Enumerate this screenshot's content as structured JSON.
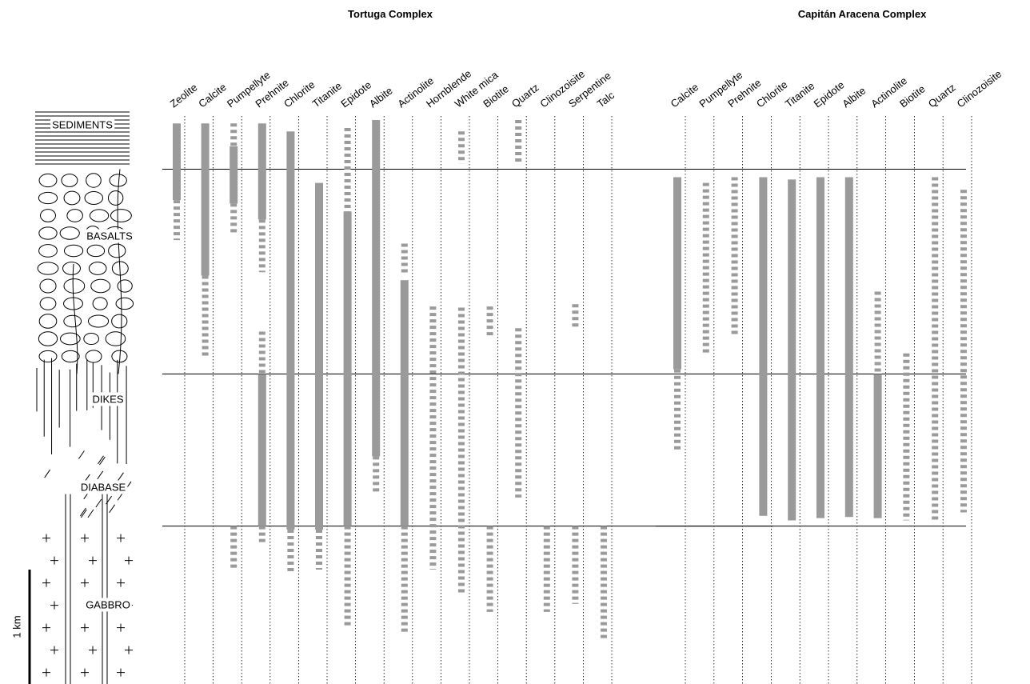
{
  "scale": {
    "ylim": [
      0,
      4.93
    ],
    "label": "1 km",
    "bar": 1
  },
  "lithology": {
    "labels": [
      "SEDIMENTS",
      "BASALTS",
      "DIKES",
      "DIABASE",
      "GABBRO"
    ],
    "boundaries": [
      0.43,
      2.22,
      3.55
    ]
  },
  "complexes": [
    {
      "title": "Tortuga Complex",
      "minerals": [
        {
          "name": "Zeolite",
          "ranges": [
            {
              "from": 0.03,
              "to": 0.7,
              "style": "solid"
            },
            {
              "from": 0.7,
              "to": 1.05,
              "style": "dashed"
            }
          ]
        },
        {
          "name": "Calcite",
          "ranges": [
            {
              "from": 0.03,
              "to": 1.36,
              "style": "solid"
            },
            {
              "from": 1.36,
              "to": 2.08,
              "style": "dashed"
            }
          ]
        },
        {
          "name": "Pumpellyte",
          "ranges": [
            {
              "from": 0.03,
              "to": 0.23,
              "style": "dashed"
            },
            {
              "from": 0.23,
              "to": 0.73,
              "style": "solid"
            },
            {
              "from": 0.73,
              "to": 0.99,
              "style": "dashed"
            },
            {
              "from": 3.55,
              "to": 3.93,
              "style": "dashed"
            }
          ]
        },
        {
          "name": "Prehnite",
          "ranges": [
            {
              "from": 0.03,
              "to": 0.87,
              "style": "solid"
            },
            {
              "from": 0.87,
              "to": 1.33,
              "style": "dashed"
            },
            {
              "from": 1.85,
              "to": 2.22,
              "style": "dashed"
            },
            {
              "from": 2.22,
              "to": 3.55,
              "style": "solid"
            },
            {
              "from": 3.55,
              "to": 3.71,
              "style": "dashed"
            }
          ]
        },
        {
          "name": "Chlorite",
          "ranges": [
            {
              "from": 0.1,
              "to": 3.58,
              "style": "solid"
            },
            {
              "from": 3.58,
              "to": 3.97,
              "style": "dashed"
            }
          ]
        },
        {
          "name": "Titanite",
          "ranges": [
            {
              "from": 0.55,
              "to": 3.58,
              "style": "solid"
            },
            {
              "from": 3.58,
              "to": 3.93,
              "style": "dashed"
            }
          ]
        },
        {
          "name": "Epidote",
          "ranges": [
            {
              "from": 0.07,
              "to": 0.8,
              "style": "dashed"
            },
            {
              "from": 0.8,
              "to": 3.55,
              "style": "solid"
            },
            {
              "from": 3.55,
              "to": 4.44,
              "style": "dashed"
            }
          ]
        },
        {
          "name": "Albite",
          "ranges": [
            {
              "from": 0.0,
              "to": 2.94,
              "style": "solid"
            },
            {
              "from": 2.94,
              "to": 3.25,
              "style": "dashed"
            }
          ]
        },
        {
          "name": "Actinolite",
          "ranges": [
            {
              "from": 1.08,
              "to": 1.36,
              "style": "dashed"
            },
            {
              "from": 1.4,
              "to": 3.55,
              "style": "solid"
            },
            {
              "from": 3.55,
              "to": 4.48,
              "style": "dashed"
            }
          ]
        },
        {
          "name": "Hornblende",
          "ranges": [
            {
              "from": 1.63,
              "to": 3.93,
              "style": "dashed"
            }
          ]
        },
        {
          "name": "White mica",
          "ranges": [
            {
              "from": 0.1,
              "to": 0.38,
              "style": "dashed"
            },
            {
              "from": 1.64,
              "to": 4.13,
              "style": "dashed"
            }
          ]
        },
        {
          "name": "Biotite",
          "ranges": [
            {
              "from": 1.63,
              "to": 1.89,
              "style": "dashed"
            },
            {
              "from": 3.55,
              "to": 4.3,
              "style": "dashed"
            }
          ]
        },
        {
          "name": "Quartz",
          "ranges": [
            {
              "from": 0.0,
              "to": 0.38,
              "style": "dashed"
            },
            {
              "from": 1.82,
              "to": 3.3,
              "style": "dashed"
            }
          ]
        },
        {
          "name": "Clinozoisite",
          "ranges": [
            {
              "from": 3.55,
              "to": 4.3,
              "style": "dashed"
            }
          ]
        },
        {
          "name": "Serpentine",
          "ranges": [
            {
              "from": 1.61,
              "to": 1.83,
              "style": "dashed"
            },
            {
              "from": 3.55,
              "to": 4.23,
              "style": "dashed"
            }
          ]
        },
        {
          "name": "Talc",
          "ranges": [
            {
              "from": 3.55,
              "to": 4.53,
              "style": "dashed"
            }
          ]
        }
      ]
    },
    {
      "title": "Capitán Aracena Complex",
      "minerals": [
        {
          "name": "Calcite",
          "ranges": [
            {
              "from": 0.5,
              "to": 2.18,
              "style": "solid"
            },
            {
              "from": 2.18,
              "to": 2.9,
              "style": "dashed"
            }
          ]
        },
        {
          "name": "Pumpellyte",
          "ranges": [
            {
              "from": 0.55,
              "to": 2.04,
              "style": "dashed"
            }
          ]
        },
        {
          "name": "Prehnite",
          "ranges": [
            {
              "from": 0.5,
              "to": 1.89,
              "style": "dashed"
            }
          ]
        },
        {
          "name": "Chlorite",
          "ranges": [
            {
              "from": 0.5,
              "to": 3.46,
              "style": "solid"
            }
          ]
        },
        {
          "name": "Titanite",
          "ranges": [
            {
              "from": 0.52,
              "to": 3.5,
              "style": "solid"
            }
          ]
        },
        {
          "name": "Epidote",
          "ranges": [
            {
              "from": 0.5,
              "to": 3.48,
              "style": "solid"
            }
          ]
        },
        {
          "name": "Albite",
          "ranges": [
            {
              "from": 0.5,
              "to": 3.47,
              "style": "solid"
            }
          ]
        },
        {
          "name": "Actinolite",
          "ranges": [
            {
              "from": 1.5,
              "to": 2.22,
              "style": "dashed"
            },
            {
              "from": 2.22,
              "to": 3.48,
              "style": "solid"
            }
          ]
        },
        {
          "name": "Biotite",
          "ranges": [
            {
              "from": 2.04,
              "to": 3.5,
              "style": "dashed"
            }
          ]
        },
        {
          "name": "Quartz",
          "ranges": [
            {
              "from": 0.5,
              "to": 3.5,
              "style": "dashed"
            }
          ]
        },
        {
          "name": "Clinozoisite",
          "ranges": [
            {
              "from": 0.61,
              "to": 3.43,
              "style": "dashed"
            }
          ]
        }
      ]
    }
  ]
}
